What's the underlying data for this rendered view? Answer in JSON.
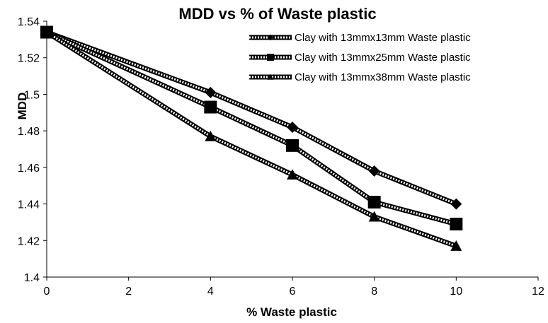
{
  "chart_data": {
    "type": "line",
    "title": "MDD vs % of Waste plastic",
    "xlabel": "% Waste plastic",
    "ylabel": "MDD",
    "xlim": [
      0,
      12
    ],
    "ylim": [
      1.4,
      1.54
    ],
    "xticks": [
      "0",
      "2",
      "4",
      "6",
      "8",
      "10",
      "12"
    ],
    "yticks": [
      "1.4",
      "1.42",
      "1.44",
      "1.46",
      "1.48",
      "1.5",
      "1.52",
      "1.54"
    ],
    "x": [
      0,
      4,
      6,
      8,
      10
    ],
    "grid": false,
    "legend_position": "top-right",
    "series": [
      {
        "name": "Clay with 13mmx13mm Waste plastic",
        "marker": "diamond",
        "values": [
          1.534,
          1.501,
          1.482,
          1.458,
          1.44
        ]
      },
      {
        "name": "Clay with 13mmx25mm Waste plastic",
        "marker": "square",
        "values": [
          1.534,
          1.493,
          1.472,
          1.441,
          1.429
        ]
      },
      {
        "name": "Clay with 13mmx38mm Waste plastic",
        "marker": "triangle",
        "values": [
          1.534,
          1.477,
          1.456,
          1.433,
          1.417
        ]
      }
    ]
  }
}
